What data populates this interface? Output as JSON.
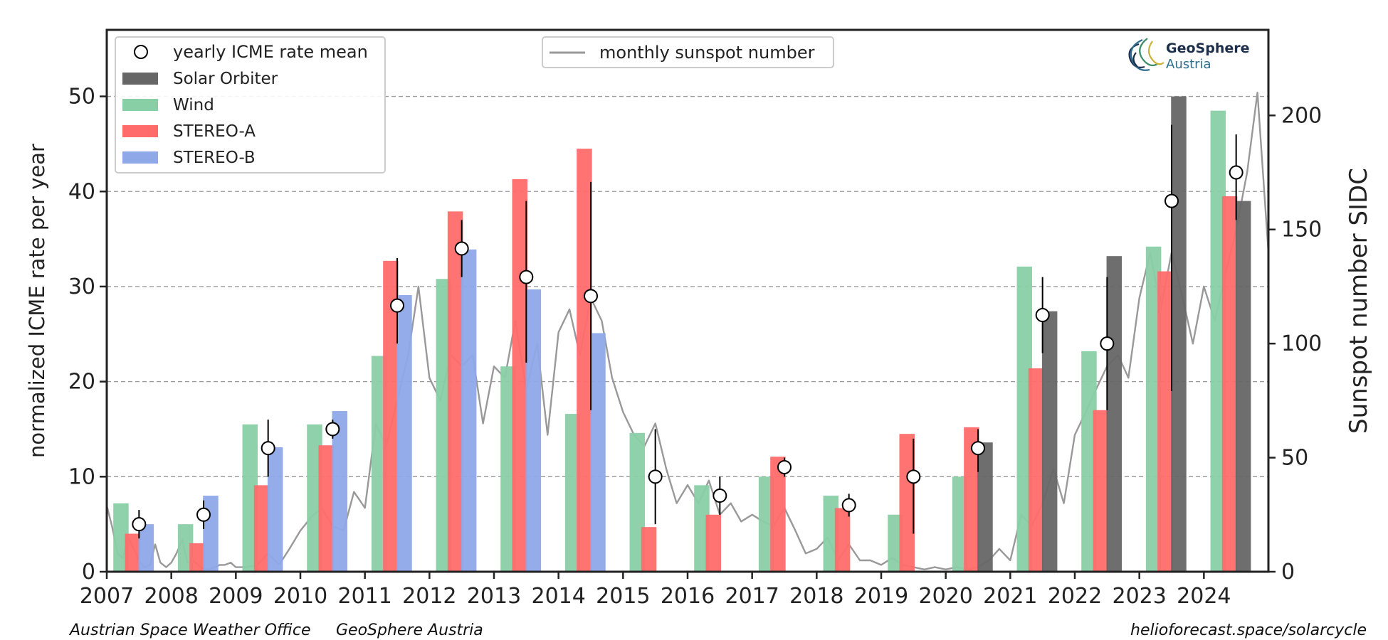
{
  "chart_data": {
    "type": "bar",
    "categories": [
      "2007",
      "2008",
      "2009",
      "2010",
      "2011",
      "2012",
      "2013",
      "2014",
      "2015",
      "2016",
      "2017",
      "2018",
      "2019",
      "2020",
      "2021",
      "2022",
      "2023",
      "2024"
    ],
    "xlabel": "",
    "ylabel": "normalized ICME rate per year",
    "ylabel_right": "Sunspot number SIDC",
    "ylim": [
      0,
      57
    ],
    "ylim_right": [
      0,
      237.5
    ],
    "xlim": [
      2007,
      2025
    ],
    "yticks": [
      0,
      10,
      20,
      30,
      40,
      50
    ],
    "yticks_right": [
      0,
      50,
      100,
      150,
      200
    ],
    "grid": "horizontal dashed",
    "legend_left_placement": "top-left",
    "legend_center_placement": "top-center",
    "series": [
      {
        "name": "Wind",
        "color": "#88cfa5",
        "values": [
          7.2,
          5.0,
          15.5,
          15.5,
          22.7,
          30.8,
          21.6,
          16.6,
          14.6,
          9.1,
          10.0,
          8.0,
          6.0,
          10.0,
          32.1,
          23.2,
          34.2,
          48.5
        ]
      },
      {
        "name": "STEREO-A",
        "color": "#ff6b6b",
        "values": [
          4.0,
          3.0,
          9.1,
          13.3,
          32.7,
          37.9,
          41.3,
          44.5,
          4.7,
          6.0,
          12.1,
          6.7,
          14.5,
          15.2,
          21.4,
          17.0,
          31.6,
          39.5
        ]
      },
      {
        "name": "STEREO-B",
        "color": "#8ea8e8",
        "values": [
          5.0,
          8.0,
          13.1,
          16.9,
          29.1,
          33.9,
          29.7,
          25.1,
          null,
          null,
          null,
          null,
          null,
          null,
          null,
          null,
          null,
          null
        ]
      },
      {
        "name": "Solar Orbiter",
        "color": "#666666",
        "values": [
          null,
          null,
          null,
          null,
          null,
          null,
          null,
          null,
          null,
          null,
          null,
          null,
          null,
          13.6,
          27.4,
          33.2,
          50.0,
          39.0
        ]
      }
    ],
    "icme_mean": {
      "name": "yearly ICME rate mean",
      "values": [
        5,
        6,
        13,
        15,
        28,
        34,
        31,
        29,
        10,
        8,
        11,
        7,
        10,
        13,
        27,
        24,
        39,
        42
      ],
      "err_low": [
        1.5,
        1.5,
        3,
        1,
        4,
        3,
        9,
        12,
        5,
        2,
        1,
        1.2,
        6,
        2.5,
        4,
        7,
        20,
        5
      ],
      "err_high": [
        1.5,
        1.5,
        3,
        1,
        5,
        3,
        8,
        12,
        5,
        2,
        1,
        1.2,
        4,
        2,
        4,
        7,
        8,
        4
      ]
    },
    "sunspot": {
      "name": "monthly sunspot number",
      "color": "#999999",
      "x": [
        2007.0,
        2007.08,
        2007.17,
        2007.25,
        2007.33,
        2007.42,
        2007.5,
        2007.58,
        2007.67,
        2007.75,
        2007.83,
        2007.92,
        2008.0,
        2008.08,
        2008.17,
        2008.25,
        2008.33,
        2008.42,
        2008.5,
        2008.58,
        2008.67,
        2008.75,
        2008.83,
        2008.92,
        2009.0,
        2009.17,
        2009.33,
        2009.5,
        2009.67,
        2009.83,
        2010.0,
        2010.17,
        2010.33,
        2010.5,
        2010.67,
        2010.83,
        2011.0,
        2011.17,
        2011.33,
        2011.5,
        2011.67,
        2011.83,
        2012.0,
        2012.17,
        2012.33,
        2012.5,
        2012.67,
        2012.83,
        2013.0,
        2013.17,
        2013.33,
        2013.5,
        2013.67,
        2013.83,
        2014.0,
        2014.17,
        2014.33,
        2014.5,
        2014.67,
        2014.83,
        2015.0,
        2015.17,
        2015.33,
        2015.5,
        2015.67,
        2015.83,
        2016.0,
        2016.17,
        2016.33,
        2016.5,
        2016.67,
        2016.83,
        2017.0,
        2017.17,
        2017.33,
        2017.5,
        2017.67,
        2017.83,
        2018.0,
        2018.17,
        2018.33,
        2018.5,
        2018.67,
        2018.83,
        2019.0,
        2019.17,
        2019.33,
        2019.5,
        2019.67,
        2019.83,
        2020.0,
        2020.17,
        2020.33,
        2020.5,
        2020.67,
        2020.83,
        2021.0,
        2021.17,
        2021.33,
        2021.5,
        2021.67,
        2021.83,
        2022.0,
        2022.17,
        2022.33,
        2022.5,
        2022.67,
        2022.83,
        2023.0,
        2023.17,
        2023.33,
        2023.5,
        2023.67,
        2023.83,
        2024.0,
        2024.17,
        2024.33,
        2024.5,
        2024.67,
        2024.83,
        2025.0
      ],
      "values": [
        29,
        20,
        8,
        6,
        15,
        10,
        5,
        2,
        3,
        12,
        4,
        2,
        4,
        8,
        14,
        4,
        5,
        3,
        1,
        1,
        2,
        3,
        3,
        4,
        2,
        2,
        3,
        8,
        3,
        10,
        18,
        24,
        28,
        20,
        18,
        35,
        28,
        65,
        55,
        75,
        95,
        125,
        85,
        75,
        95,
        90,
        95,
        65,
        90,
        85,
        110,
        80,
        100,
        60,
        105,
        115,
        95,
        120,
        110,
        85,
        70,
        60,
        55,
        65,
        45,
        30,
        38,
        30,
        40,
        25,
        30,
        22,
        25,
        22,
        20,
        28,
        18,
        8,
        10,
        15,
        5,
        12,
        5,
        5,
        3,
        6,
        3,
        2,
        1,
        2,
        1,
        2,
        1,
        2,
        5,
        10,
        5,
        25,
        20,
        30,
        45,
        30,
        60,
        70,
        80,
        90,
        95,
        85,
        120,
        140,
        115,
        140,
        120,
        100,
        125,
        110,
        130,
        150,
        175,
        210,
        140
      ]
    }
  },
  "legend_left": {
    "mean_label": "yearly ICME rate mean",
    "solo_label": "Solar Orbiter",
    "wind_label": "Wind",
    "sta_label": "STEREO-A",
    "stb_label": "STEREO-B"
  },
  "legend_center": {
    "sunspot_label": "monthly sunspot number"
  },
  "logo": {
    "line1": "GeoSphere",
    "line2": "Austria"
  },
  "credits": {
    "office": "Austrian Space Weather Office",
    "org": "GeoSphere Austria",
    "url": "helioforecast.space/solarcycle"
  },
  "colors": {
    "wind": "#88cfa5",
    "sta": "#ff6b6b",
    "stb": "#8ea8e8",
    "solo": "#666666",
    "sunspot": "#999999"
  }
}
